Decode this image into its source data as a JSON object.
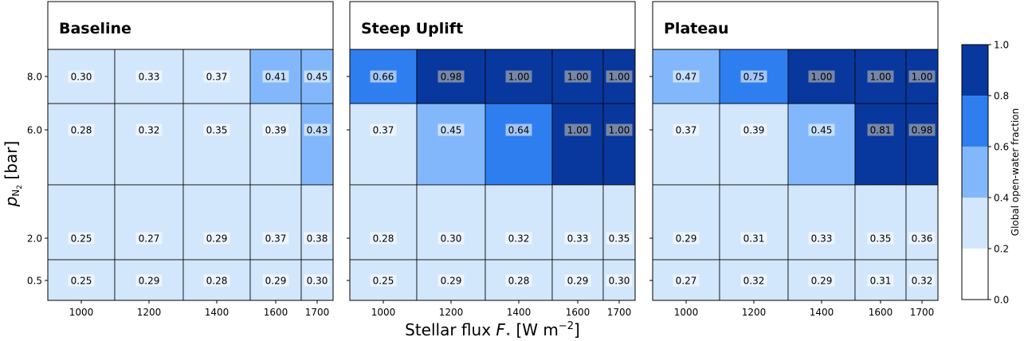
{
  "chart_data": {
    "type": "heatmap",
    "xlabel_main": "Stellar flux ",
    "xlabel_italic": "F",
    "xlabel_sub": "⋆",
    "xlabel_unit": "[W m",
    "xlabel_unit_sup": "−2",
    "xlabel_unit_close": "]",
    "ylabel_italic": "p",
    "ylabel_sub": "N",
    "ylabel_sub2": "2",
    "ylabel_unit": " [bar]",
    "x_categories": [
      "1000",
      "1200",
      "1400",
      "1600",
      "1700"
    ],
    "y_categories": [
      "8.0",
      "6.0",
      "2.0",
      "0.5"
    ],
    "colorbar": {
      "label": "Global open-water fraction",
      "ticks": [
        "1.0",
        "0.8",
        "0.6",
        "0.4",
        "0.2",
        "0.0"
      ],
      "bins": [
        {
          "range": [
            0.8,
            1.0
          ],
          "color": "#08389e"
        },
        {
          "range": [
            0.6,
            0.8
          ],
          "color": "#2f7ef0"
        },
        {
          "range": [
            0.4,
            0.6
          ],
          "color": "#82b8fb"
        },
        {
          "range": [
            0.2,
            0.4
          ],
          "color": "#d2e6fc"
        },
        {
          "range": [
            0.0,
            0.2
          ],
          "color": "#ffffff"
        }
      ]
    },
    "panels": [
      {
        "title": "Baseline",
        "values": [
          [
            "0.30",
            "0.33",
            "0.37",
            "0.41",
            "0.45"
          ],
          [
            "0.28",
            "0.32",
            "0.35",
            "0.39",
            "0.43"
          ],
          [
            "0.25",
            "0.27",
            "0.29",
            "0.37",
            "0.38"
          ],
          [
            "0.25",
            "0.29",
            "0.28",
            "0.29",
            "0.30"
          ]
        ]
      },
      {
        "title": "Steep Uplift",
        "values": [
          [
            "0.66",
            "0.98",
            "1.00",
            "1.00",
            "1.00"
          ],
          [
            "0.37",
            "0.45",
            "0.64",
            "1.00",
            "1.00"
          ],
          [
            "0.28",
            "0.30",
            "0.32",
            "0.33",
            "0.35"
          ],
          [
            "0.25",
            "0.29",
            "0.28",
            "0.29",
            "0.30"
          ]
        ]
      },
      {
        "title": "Plateau",
        "values": [
          [
            "0.47",
            "0.75",
            "1.00",
            "1.00",
            "1.00"
          ],
          [
            "0.37",
            "0.39",
            "0.45",
            "0.81",
            "0.98"
          ],
          [
            "0.29",
            "0.31",
            "0.33",
            "0.35",
            "0.36"
          ],
          [
            "0.27",
            "0.32",
            "0.29",
            "0.31",
            "0.32"
          ]
        ]
      }
    ]
  }
}
